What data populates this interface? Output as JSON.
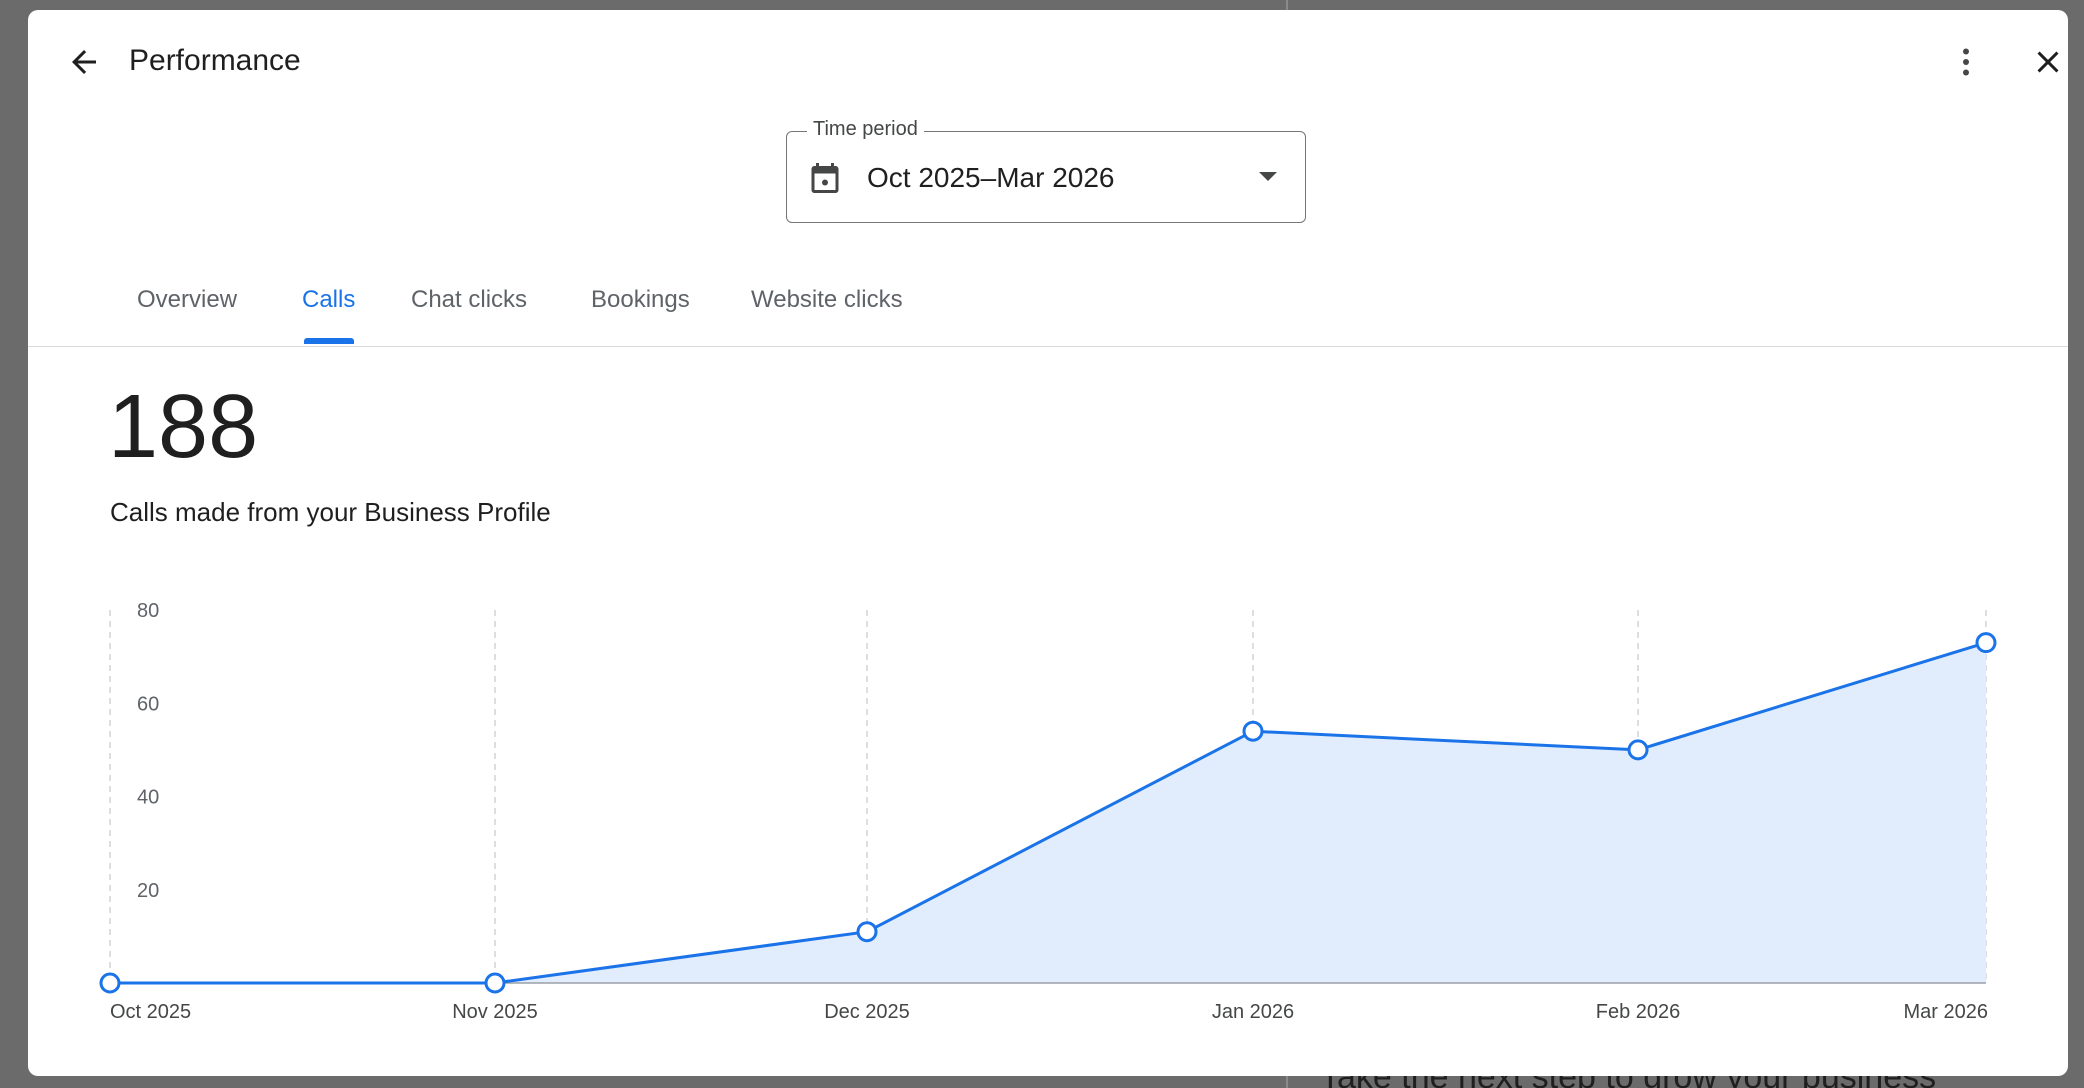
{
  "background": {
    "partial_text": "Take the next step to grow your business"
  },
  "header": {
    "title": "Performance",
    "back_icon": "arrow-back-icon",
    "more_icon": "more-vert-icon",
    "close_icon": "close-icon"
  },
  "time_period": {
    "label": "Time period",
    "value": "Oct 2025–Mar 2026",
    "icon": "calendar-icon"
  },
  "tabs": [
    {
      "label": "Overview",
      "active": false
    },
    {
      "label": "Calls",
      "active": true
    },
    {
      "label": "Chat clicks",
      "active": false
    },
    {
      "label": "Bookings",
      "active": false
    },
    {
      "label": "Website clicks",
      "active": false
    }
  ],
  "metric": {
    "value": "188",
    "description": "Calls made from your Business Profile"
  },
  "colors": {
    "accent": "#1a73e8",
    "area_fill": "#e1ecfc",
    "text": "#1f1f1f"
  },
  "chart_data": {
    "type": "area",
    "categories": [
      "Oct 2025",
      "Nov 2025",
      "Dec 2025",
      "Jan 2026",
      "Feb 2026",
      "Mar 2026"
    ],
    "series": [
      {
        "values": [
          0,
          0,
          11,
          54,
          50,
          73
        ]
      }
    ],
    "y_ticks": [
      "20",
      "40",
      "60",
      "80"
    ],
    "ylim": [
      0,
      80
    ],
    "grid": "vertical dashed"
  }
}
